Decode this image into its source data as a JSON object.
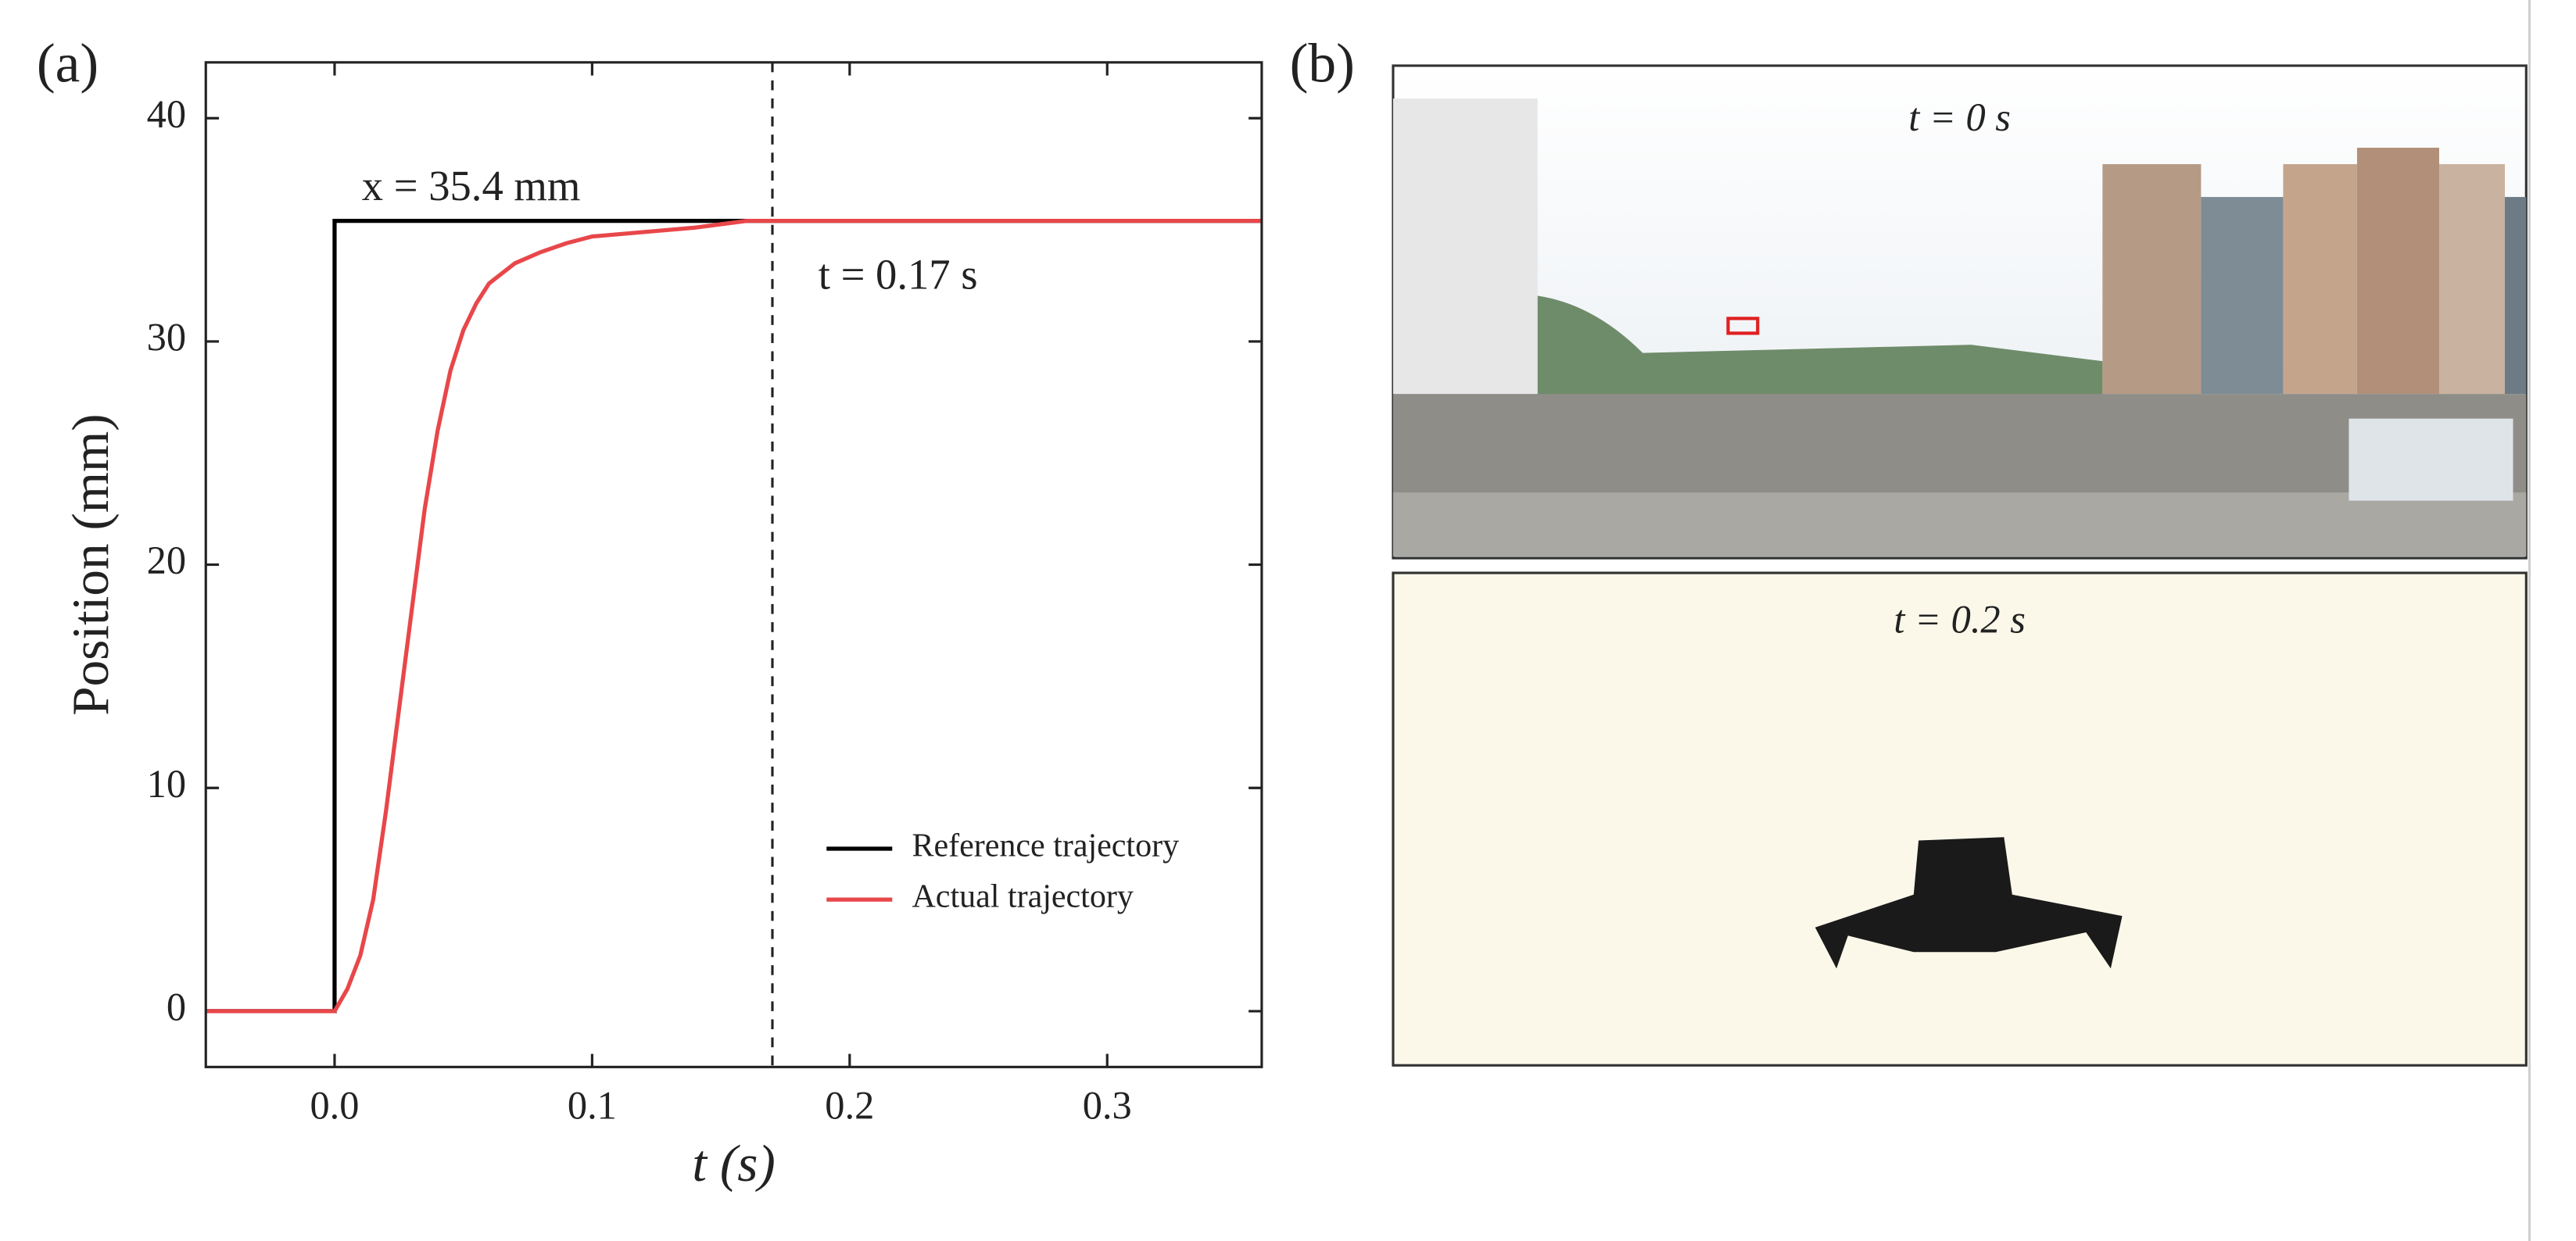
{
  "panel_labels": [
    "(a)",
    "(b)"
  ],
  "chart_data": {
    "type": "line",
    "xlabel": "t (s)",
    "ylabel": "Position (mm)",
    "xlim": [
      -0.05,
      0.36
    ],
    "ylim": [
      -2.5,
      42.5
    ],
    "xticks": [
      {
        "value": 0,
        "label": "0.0"
      },
      0.1,
      0.2,
      0.3
    ],
    "yticks": [
      0,
      10,
      20,
      30,
      40
    ],
    "vline": 0.17,
    "legend": "lower right",
    "annotations": [
      "x = 35.4 mm",
      "t = 0.17 s"
    ],
    "series": [
      {
        "name": "Reference trajectory",
        "color": "#000000",
        "x": [
          -0.05,
          0,
          0,
          0.36
        ],
        "values": [
          0,
          0,
          35.4,
          35.4
        ]
      },
      {
        "name": "Actual trajectory",
        "color": "#e8474a",
        "x": [
          -0.05,
          0,
          0.005,
          0.01,
          0.015,
          0.02,
          0.025,
          0.03,
          0.035,
          0.04,
          0.045,
          0.05,
          0.055,
          0.06,
          0.07,
          0.08,
          0.09,
          0.1,
          0.12,
          0.14,
          0.16,
          0.17,
          0.2,
          0.36
        ],
        "values": [
          0,
          0,
          1,
          2.5,
          5,
          9,
          13.5,
          18,
          22.5,
          26,
          28.7,
          30.5,
          31.7,
          32.6,
          33.5,
          34,
          34.4,
          34.7,
          34.9,
          35.1,
          35.4,
          35.4,
          35.4,
          35.4
        ]
      }
    ]
  },
  "photos": [
    {
      "label": "t = 0 s"
    },
    {
      "label": "t = 0.2 s"
    }
  ]
}
